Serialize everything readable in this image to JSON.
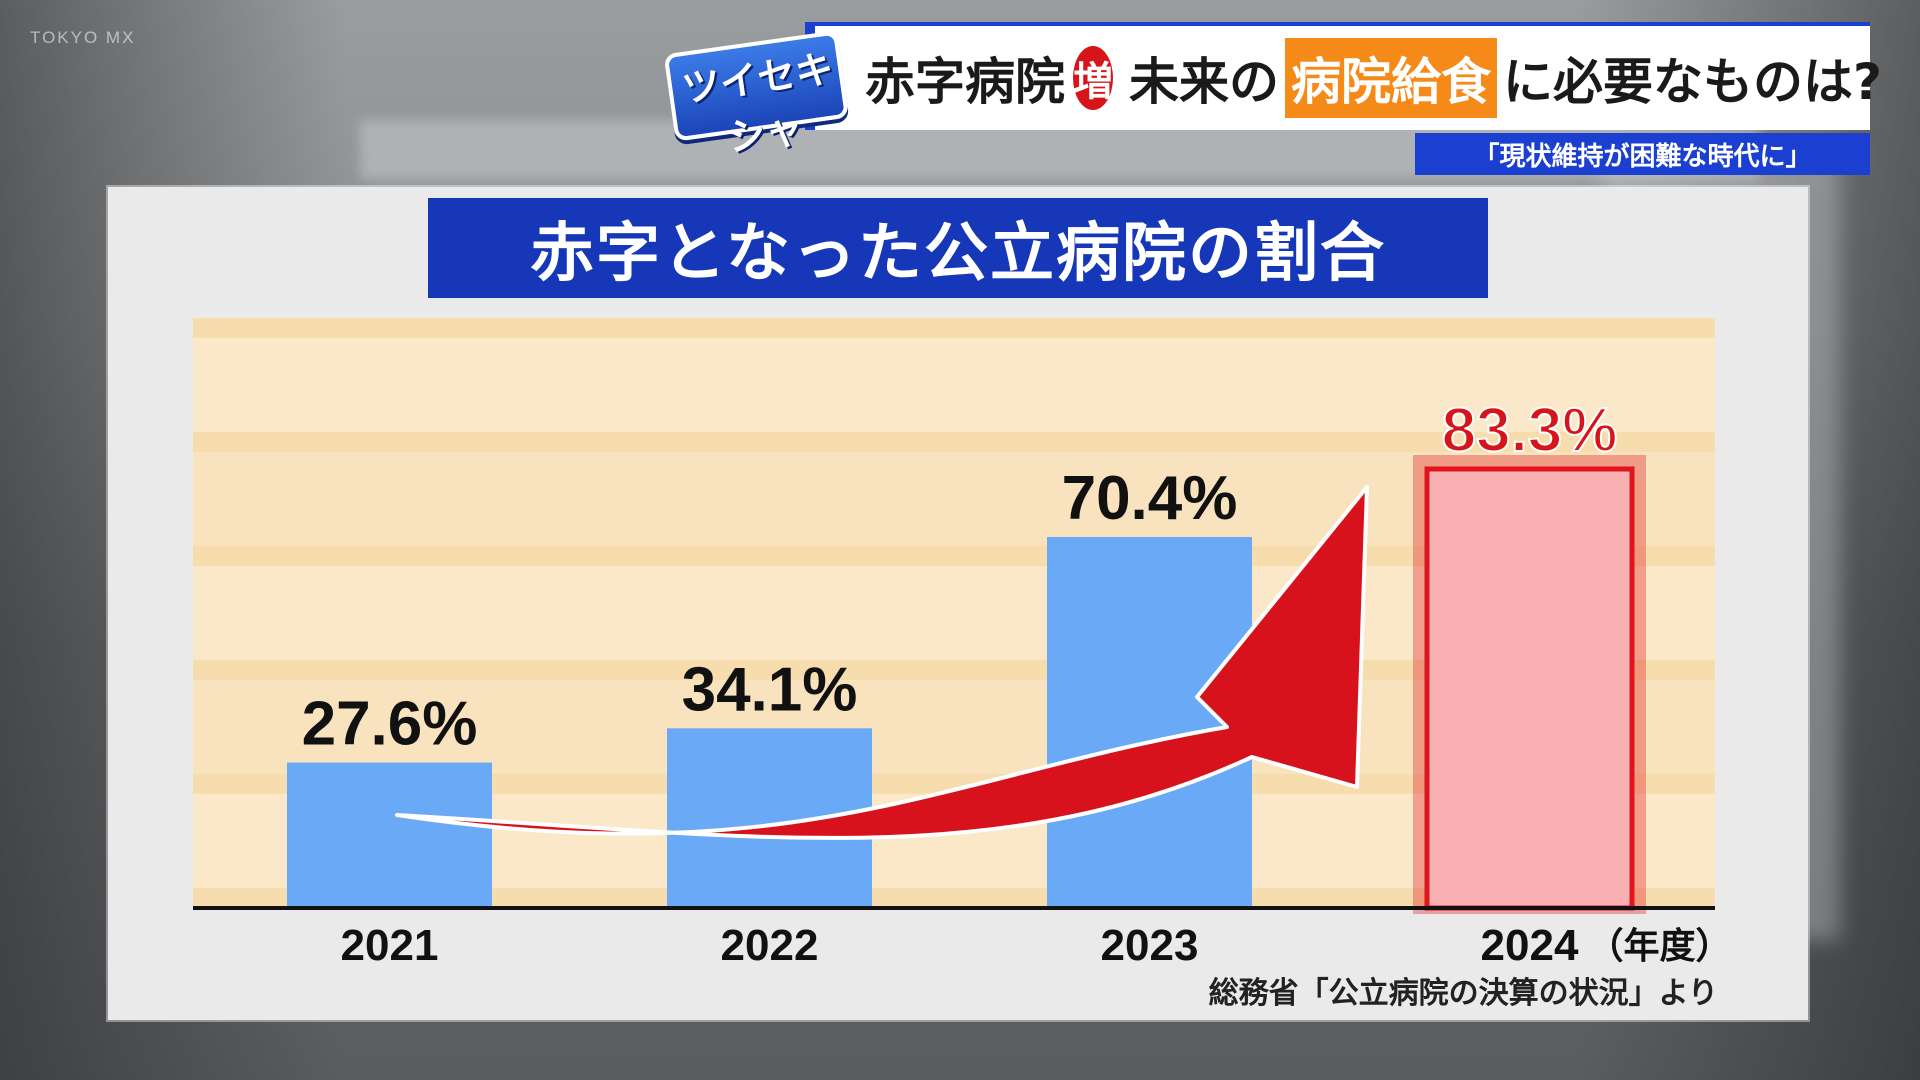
{
  "watermark": "TOKYO MX",
  "logo_text": "ツイセキシャ",
  "caption": {
    "part1": "赤字病院",
    "badge": "増",
    "part2": "未来の",
    "highlight": "病院給食",
    "part3": "に必要なものは?"
  },
  "sub_caption": "「現状維持が困難な時代に」",
  "source": "総務省「公立病院の決算の状況」より",
  "colors": {
    "bar": "#6aa9f5",
    "bar_highlight": "#f9b0b2",
    "highlight_border": "#e0141c",
    "arrow": "#d7121c",
    "label_highlight": "#d7141a"
  },
  "chart_data": {
    "type": "bar",
    "title": "赤字となった公立病院の割合",
    "categories": [
      "2021",
      "2022",
      "2023",
      "2024"
    ],
    "values": [
      27.6,
      34.1,
      70.4,
      83.3
    ],
    "value_labels": [
      "27.6%",
      "34.1%",
      "70.4%",
      "83.3%"
    ],
    "highlight_index": 3,
    "x_unit": "（年度）",
    "ylim": [
      0,
      100
    ],
    "grid": false,
    "annotation": "red upward arrow from 2021 to 2024"
  }
}
